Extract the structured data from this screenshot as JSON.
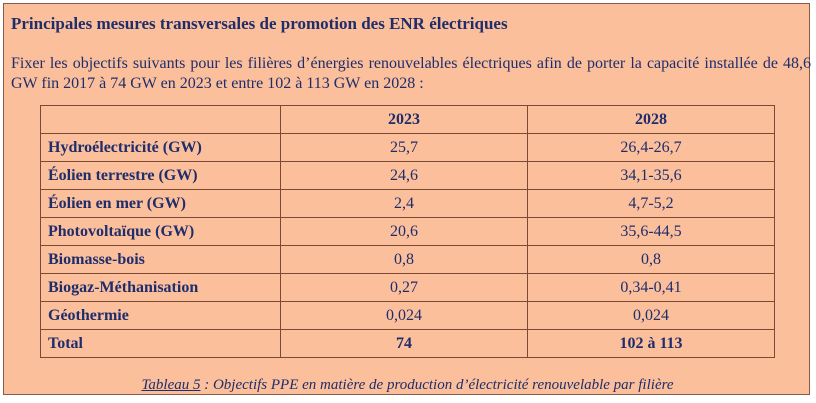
{
  "title": "Principales mesures transversales de promotion des ENR électriques",
  "intro": "Fixer les objectifs suivants pour les filières d’énergies renouvelables électriques afin de porter la capacité installée de 48,6 GW fin 2017 à 74 GW en 2023 et entre 102 à 113 GW en 2028 :",
  "table": {
    "headers": [
      "",
      "2023",
      "2028"
    ],
    "rows": [
      {
        "label": "Hydroélectricité (GW)",
        "y2023": "25,7",
        "y2028": "26,4-26,7"
      },
      {
        "label": "Éolien terrestre (GW)",
        "y2023": "24,6",
        "y2028": "34,1-35,6"
      },
      {
        "label": "Éolien en mer (GW)",
        "y2023": "2,4",
        "y2028": "4,7-5,2"
      },
      {
        "label": "Photovoltaïque (GW)",
        "y2023": "20,6",
        "y2028": "35,6-44,5"
      },
      {
        "label": "Biomasse-bois",
        "y2023": "0,8",
        "y2028": "0,8"
      },
      {
        "label": "Biogaz-Méthanisation",
        "y2023": "0,27",
        "y2028": "0,34-0,41"
      },
      {
        "label": "Géothermie",
        "y2023": "0,024",
        "y2028": "0,024"
      },
      {
        "label": "Total",
        "y2023": "74",
        "y2028": "102 à 113"
      }
    ]
  },
  "caption": {
    "ref": "Tableau 5",
    "text": " : Objectifs PPE en matière de production d’électricité renouvelable par filière"
  }
}
